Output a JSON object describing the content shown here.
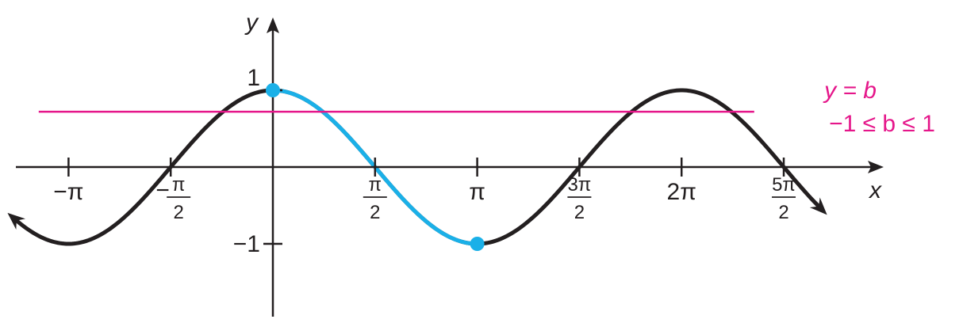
{
  "chart_data": {
    "type": "line",
    "title": "",
    "xlabel": "x",
    "ylabel": "y",
    "xlim": [
      -4.0,
      8.6
    ],
    "ylim": [
      -1.9,
      1.75
    ],
    "grid": false,
    "colors": {
      "curve": "#231f20",
      "highlight": "#1ab0e8",
      "line": "#e5168a",
      "axis": "#231f20",
      "label_pink": "#e5168a"
    },
    "x_ticks": [
      {
        "value": -3.14159,
        "kind": "plain",
        "text": "−π"
      },
      {
        "value": -1.5708,
        "kind": "frac",
        "num": "π",
        "den": "2",
        "sign": "−"
      },
      {
        "value": 1.5708,
        "kind": "frac",
        "num": "π",
        "den": "2",
        "sign": ""
      },
      {
        "value": 3.14159,
        "kind": "plain",
        "text": "π"
      },
      {
        "value": 4.71239,
        "kind": "frac",
        "num": "3π",
        "den": "2",
        "sign": ""
      },
      {
        "value": 6.28319,
        "kind": "plain",
        "text": "2π"
      },
      {
        "value": 7.85398,
        "kind": "frac",
        "num": "5π",
        "den": "2",
        "sign": ""
      }
    ],
    "y_ticks": [
      {
        "value": 1,
        "text": "1"
      },
      {
        "value": -1,
        "text": "−1"
      }
    ],
    "series": [
      {
        "function": "cos",
        "x_start": -3.95,
        "x_end": 8.4,
        "arrows": "both"
      },
      {
        "function": "cos",
        "x_start": 0,
        "x_end": 3.14159,
        "highlight": true
      }
    ],
    "points": [
      {
        "x": 0,
        "y": 1
      },
      {
        "x": 3.14159,
        "y": -1
      }
    ],
    "horizontal_line": {
      "y": 0.72,
      "x_start": -3.6,
      "x_end": 7.4
    },
    "annotations": {
      "line_equation": "y = b",
      "line_condition": "−1 ≤ b ≤ 1"
    }
  }
}
